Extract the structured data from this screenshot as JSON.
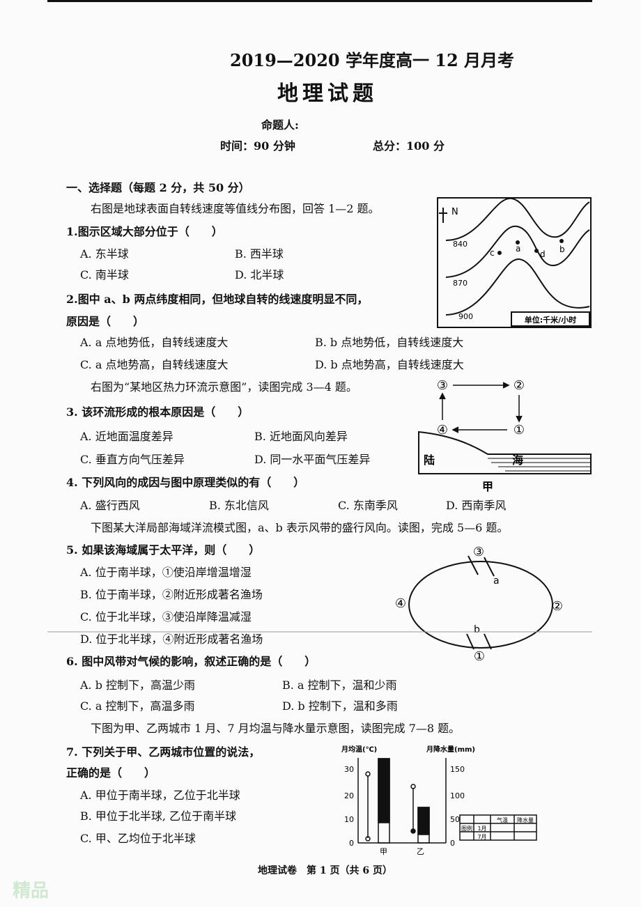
{
  "header": {
    "title": "2019—2020 学年度高一 12 月月考",
    "subject": "地理试题",
    "author": "命题人:",
    "time": "时间：90 分钟",
    "score": "总分：100 分"
  },
  "section": {
    "title": "一、选择题（每题 2 分，共 50 分）"
  },
  "intros": [
    "右图是地球表面自转线速度等值线分布图，回答 1—2 题。",
    "右图为“某地区热力环流示意图”，读图完成 3—4 题。",
    "下图某大洋局部海域洋流模式图，a、b 表示风带的盛行风向。读图，完成 5—6 题。",
    "下图为甲、乙两城市 1 月、7 月均温与降水量示意图，读图完成 7—8 题。"
  ],
  "questions": [
    {
      "stem": "1.图示区域大部分位于（　　）",
      "options": [
        "A.  东半球",
        "B.  西半球",
        "C.  南半球",
        "D.  北半球"
      ]
    },
    {
      "stem": "2.图中 a、b 两点纬度相同，但地球自转的线速度明显不同，",
      "stem2": "原因是（　　）",
      "options": [
        "A.  a 点地势低，自转线速度大",
        "B.  b 点地势低，自转线速度大",
        "C.  a 点地势高，自转线速度大",
        "D.  b 点地势高，自转线速度大"
      ]
    },
    {
      "stem": "3.  该环流形成的根本原因是（　　）",
      "options": [
        "A.  近地面温度差异",
        "B.  近地面风向差异",
        "C.  垂直方向气压差异",
        "D.  同一水平面气压差异"
      ]
    },
    {
      "stem": "4.  下列风向的成因与图中原理类似的有（　　）",
      "options": [
        "A.  盛行西风",
        "B.  东北信风",
        "C.  东南季风",
        "D.  西南季风"
      ]
    },
    {
      "stem": "5.  如果该海域属于太平洋，则（　　）",
      "options": [
        "A.  位于南半球，①使沿岸增温增湿",
        "B.  位于南半球，②附近形成著名渔场",
        "C.  位于北半球，③使沿岸降温减湿",
        "D.  位于北半球，④附近形成著名渔场"
      ]
    },
    {
      "stem": "6.  图中风带对气候的影响，叙述正确的是（　　）",
      "options": [
        "A.  b 控制下，高温少雨",
        "B.  a 控制下，温和少雨",
        "C.  a 控制下，高温多雨",
        "D.  b 控制下，温和多雨"
      ]
    },
    {
      "stem": "7.  下列关于甲、乙两城市位置的说法，",
      "stem2": "正确的是（　　）",
      "options": [
        "A.  甲位于南半球，乙位于北半球",
        "B.  甲位于北半球, 乙位于南半球",
        "C.  甲、乙均位于北半球"
      ]
    }
  ],
  "figures": {
    "contour": {
      "north": "N",
      "levels": [
        "840",
        "870",
        "900"
      ],
      "points": [
        "c",
        "a",
        "d",
        "b"
      ],
      "unit": "单位:千米/小时"
    },
    "circulation": {
      "nodes": [
        "③",
        "②",
        "④",
        "①"
      ],
      "land": "陆",
      "sea": "海",
      "caption": "甲"
    },
    "current": {
      "nodes": [
        "③",
        "④",
        "②",
        "①"
      ],
      "winds": [
        "a",
        "b"
      ]
    },
    "climate": {
      "y1_title": "月均温(℃)",
      "y2_title": "月降水量(mm)",
      "y1_ticks": [
        "30",
        "20",
        "10",
        "0"
      ],
      "y2_ticks": [
        "150",
        "100",
        "50",
        "0"
      ],
      "cities": [
        "甲",
        "乙"
      ],
      "legend_title": "图例",
      "legend_head": [
        "气温",
        "降水量"
      ],
      "legend_rows": [
        "1月",
        "7月"
      ]
    }
  },
  "footer": "地理试卷　第 1 页（共 6 页）",
  "watermark": "精品"
}
